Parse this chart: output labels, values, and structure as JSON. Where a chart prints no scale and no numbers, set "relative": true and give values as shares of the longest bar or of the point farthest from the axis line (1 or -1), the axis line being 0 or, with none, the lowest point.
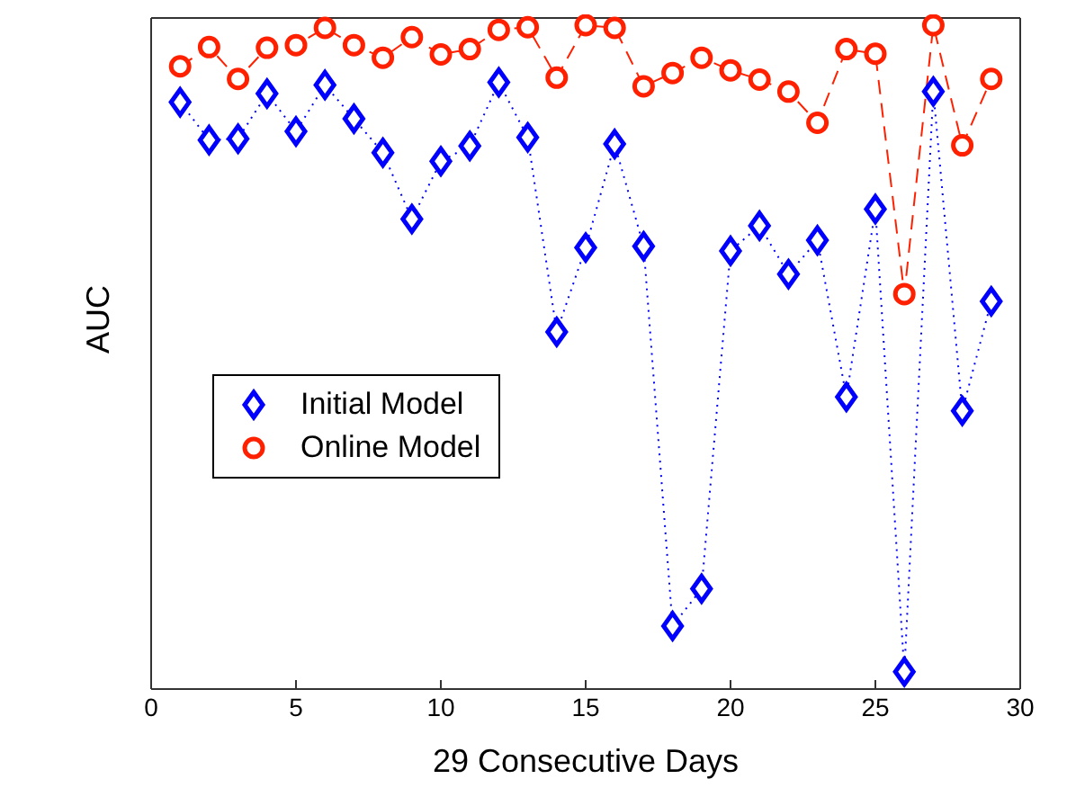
{
  "chart_data": {
    "type": "line",
    "relative": true,
    "xlabel": "29 Consecutive Days",
    "ylabel": "AUC",
    "x": [
      1,
      2,
      3,
      4,
      5,
      6,
      7,
      8,
      9,
      10,
      11,
      12,
      13,
      14,
      15,
      16,
      17,
      18,
      19,
      20,
      21,
      22,
      23,
      24,
      25,
      26,
      27,
      28,
      29
    ],
    "xlim": [
      0,
      30
    ],
    "xticks": [
      0,
      5,
      10,
      15,
      20,
      25,
      30
    ],
    "grid": false,
    "legend": "left",
    "series": [
      {
        "name": "Initial Model",
        "color": "#0000ff",
        "marker": "diamond",
        "line_style": "dotted",
        "values": [
          0.884,
          0.827,
          0.829,
          0.897,
          0.84,
          0.91,
          0.859,
          0.808,
          0.708,
          0.795,
          0.818,
          0.914,
          0.831,
          0.538,
          0.665,
          0.821,
          0.667,
          0.095,
          0.151,
          0.66,
          0.698,
          0.625,
          0.676,
          0.44,
          0.723,
          0.026,
          0.9,
          0.419,
          0.584
        ]
      },
      {
        "name": "Online Model",
        "color": "#ff2000",
        "marker": "circle",
        "line_style": "dashed",
        "values": [
          0.938,
          0.967,
          0.919,
          0.966,
          0.97,
          0.996,
          0.97,
          0.951,
          0.982,
          0.956,
          0.964,
          0.993,
          0.997,
          0.921,
          1.0,
          0.996,
          0.908,
          0.928,
          0.951,
          0.932,
          0.918,
          0.9,
          0.853,
          0.964,
          0.957,
          0.595,
          1.0,
          0.819,
          0.919
        ]
      }
    ]
  }
}
